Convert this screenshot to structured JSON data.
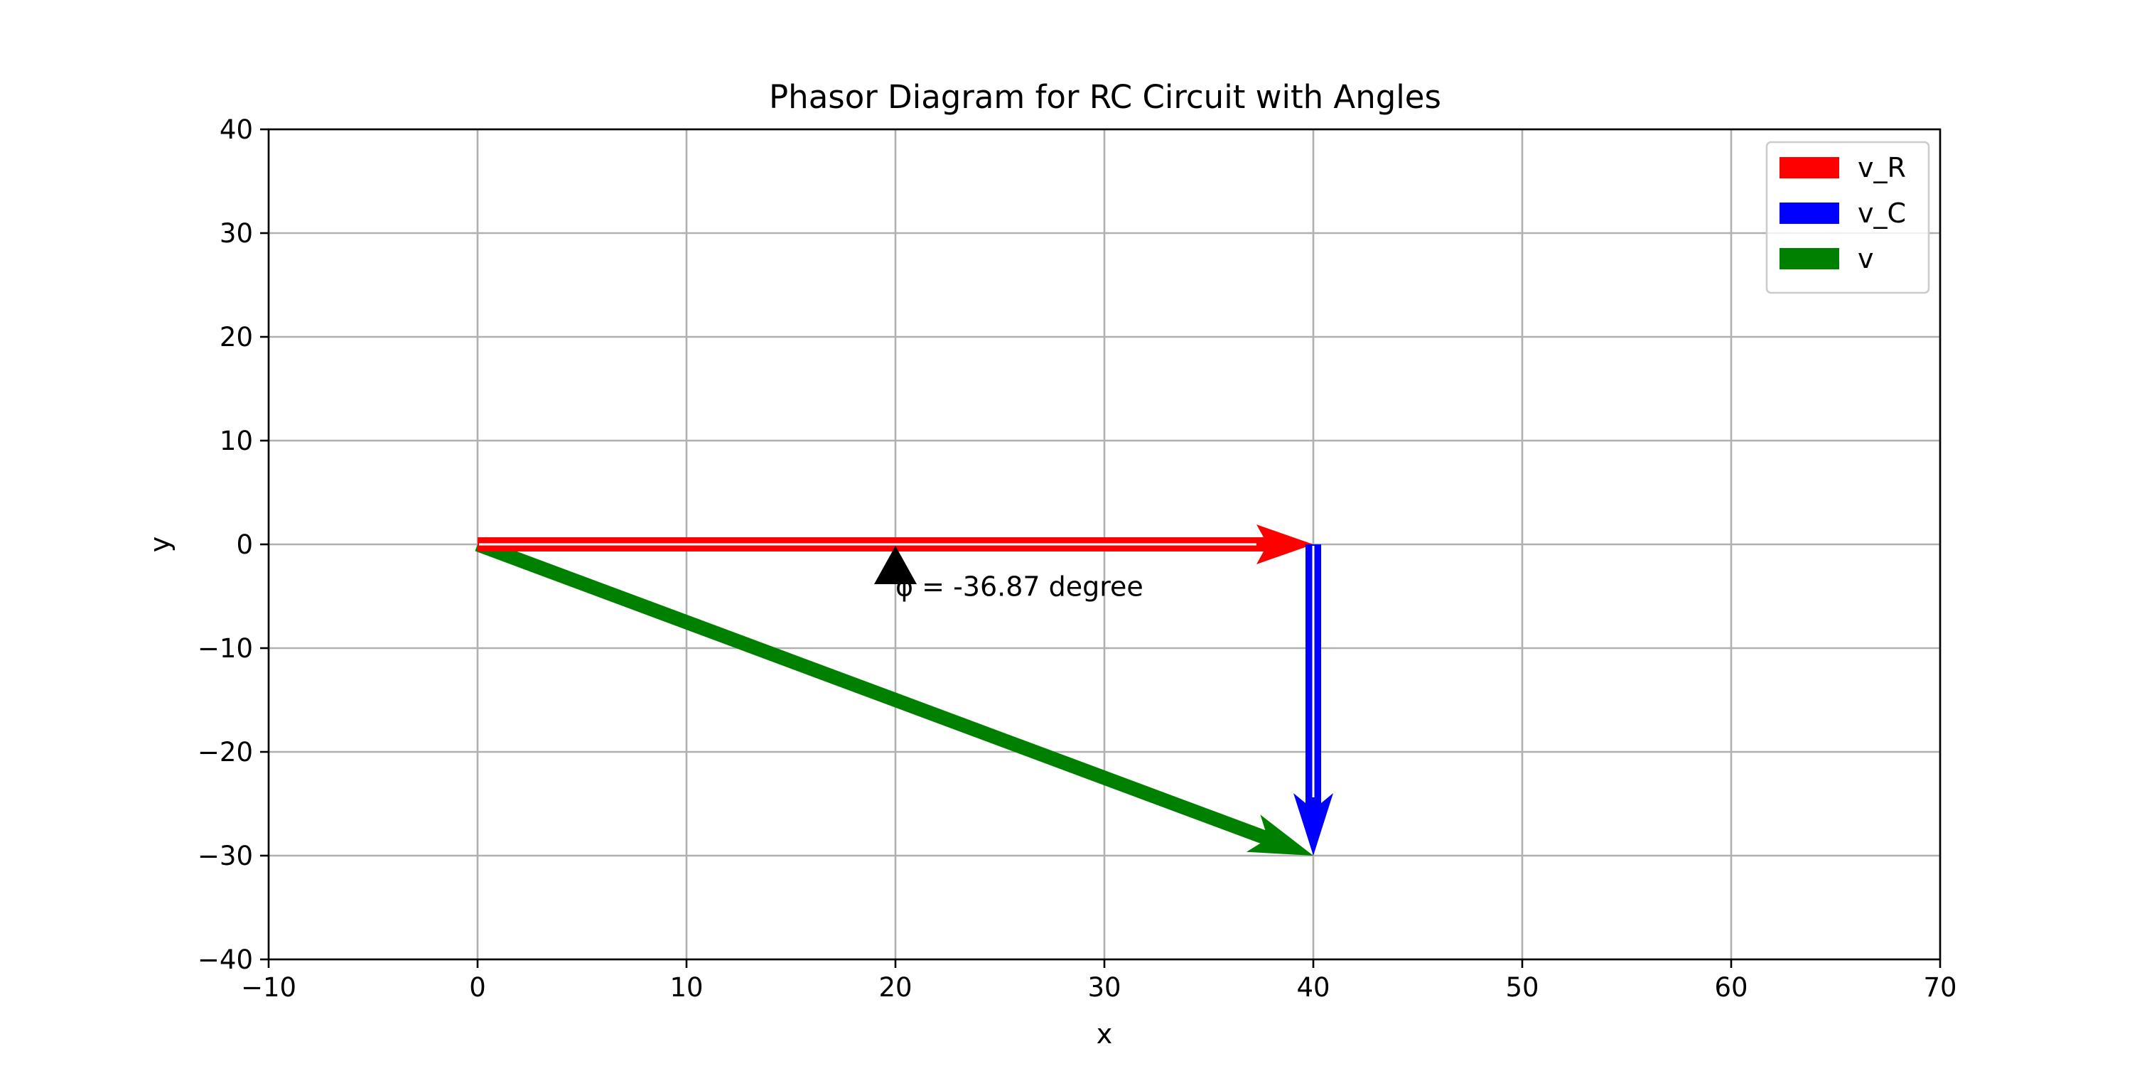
{
  "chart_data": {
    "type": "phasor",
    "title": "Phasor Diagram for RC Circuit with Angles",
    "xlabel": "x",
    "ylabel": "y",
    "xlim": [
      -10,
      70
    ],
    "ylim": [
      -40,
      40
    ],
    "x_ticks": [
      -10,
      0,
      10,
      20,
      30,
      40,
      50,
      60,
      70
    ],
    "x_tick_labels": [
      "−10",
      "0",
      "10",
      "20",
      "30",
      "40",
      "50",
      "60",
      "70"
    ],
    "y_ticks": [
      -40,
      -30,
      -20,
      -10,
      0,
      10,
      20,
      30,
      40
    ],
    "y_tick_labels": [
      "−40",
      "−30",
      "−20",
      "−10",
      "0",
      "10",
      "20",
      "30",
      "40"
    ],
    "grid": true,
    "legend_position": "top-right",
    "series": [
      {
        "name": "v_R",
        "color": "#ff0000",
        "start": [
          0,
          0
        ],
        "end": [
          40,
          0
        ]
      },
      {
        "name": "v_C",
        "color": "#0000ff",
        "start": [
          40,
          0
        ],
        "end": [
          40,
          -30
        ]
      },
      {
        "name": "v",
        "color": "#008000",
        "start": [
          0,
          0
        ],
        "end": [
          40,
          -30
        ]
      }
    ],
    "annotation": {
      "text": "φ =  -36.87 degree",
      "text_at": [
        20,
        -4
      ],
      "arrow_tip": [
        20,
        0
      ],
      "arrow_color": "#000000"
    }
  }
}
